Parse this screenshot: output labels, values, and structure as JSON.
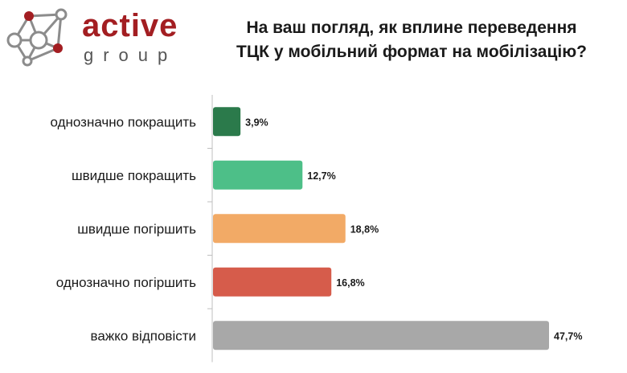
{
  "logo": {
    "word1": "active",
    "word2": "group"
  },
  "colors": {
    "brand": "#a31e22",
    "node_gray": "#8c8c8c"
  },
  "chart_data": {
    "type": "bar",
    "orientation": "horizontal",
    "title_lines": [
      "На ваш погляд, як вплине переведення",
      "ТЦК у мобільний формат на мобілізацію?"
    ],
    "categories": [
      "однозначно покращить",
      "швидше покращить",
      "швидше погіршить",
      "однозначно погіршить",
      "важко відповісти"
    ],
    "values": [
      3.9,
      12.7,
      18.8,
      16.8,
      47.7
    ],
    "value_labels": [
      "3,9%",
      "12,7%",
      "18,8%",
      "16,8%",
      "47,7%"
    ],
    "colors": [
      "#2b7a4b",
      "#4dbf88",
      "#f2aa66",
      "#d65c4b",
      "#a8a8a8"
    ],
    "xlim": [
      0,
      50
    ],
    "grid": false,
    "legend": "none"
  }
}
